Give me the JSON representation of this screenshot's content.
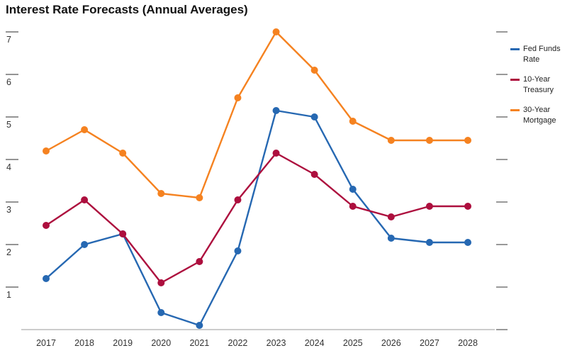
{
  "title": "Interest Rate Forecasts (Annual Averages)",
  "chart_data": {
    "type": "line",
    "title": "Interest Rate Forecasts (Annual Averages)",
    "categories": [
      "2017",
      "2018",
      "2019",
      "2020",
      "2021",
      "2022",
      "2023",
      "2024",
      "2025",
      "2026",
      "2027",
      "2028"
    ],
    "series": [
      {
        "name": "Fed Funds Rate",
        "color": "#2668b2",
        "values": [
          1.2,
          2.0,
          2.25,
          0.4,
          0.1,
          1.85,
          5.15,
          5.0,
          3.3,
          2.15,
          2.05,
          2.05
        ]
      },
      {
        "name": "10-Year Treasury",
        "color": "#ad0f3e",
        "values": [
          2.45,
          3.05,
          2.25,
          1.1,
          1.6,
          3.05,
          4.15,
          3.65,
          2.9,
          2.65,
          2.9,
          2.9
        ]
      },
      {
        "name": "30-Year Mortgage",
        "color": "#f58220",
        "values": [
          4.2,
          4.7,
          4.15,
          3.2,
          3.1,
          5.45,
          7.0,
          6.1,
          4.9,
          4.45,
          4.45,
          4.45
        ]
      }
    ],
    "xlabel": "",
    "ylabel": "",
    "ylim": [
      0,
      7
    ],
    "yticks_left": [
      1,
      2,
      3,
      4,
      5,
      6,
      7
    ],
    "yticks_right": [
      0,
      1,
      2,
      3,
      4,
      5,
      6,
      7
    ],
    "grid": false,
    "legend_position": "right",
    "axis_color": "#999999",
    "tick_color": "#555555",
    "label_color": "#333333"
  }
}
